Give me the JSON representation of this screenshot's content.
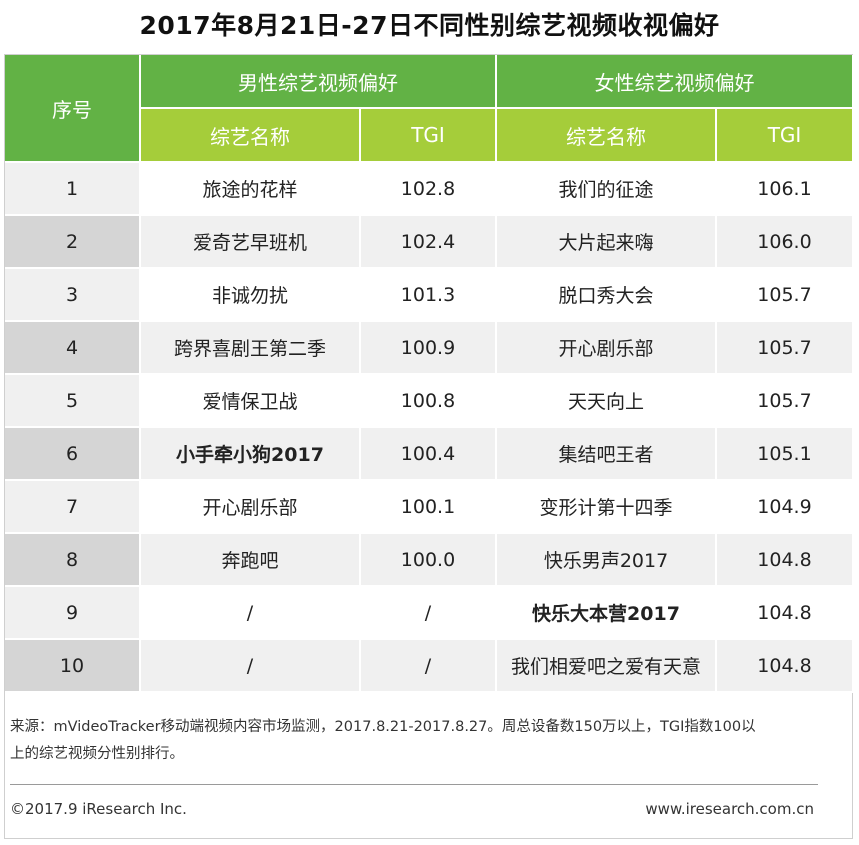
{
  "title": "2017年8月21日-27日不同性别综艺视频收视偏好",
  "table": {
    "col_seq": "序号",
    "group_male": "男性综艺视频偏好",
    "group_female": "女性综艺视频偏好",
    "sub_name_male": "综艺名称",
    "sub_tgi_male": "TGI",
    "sub_name_female": "综艺名称",
    "sub_tgi_female": "TGI",
    "rows": [
      {
        "seq": "1",
        "male_name": "旅途的花样",
        "male_tgi": "102.8",
        "female_name": "我们的征途",
        "female_tgi": "106.1"
      },
      {
        "seq": "2",
        "male_name": "爱奇艺早班机",
        "male_tgi": "102.4",
        "female_name": "大片起来嗨",
        "female_tgi": "106.0"
      },
      {
        "seq": "3",
        "male_name": "非诚勿扰",
        "male_tgi": "101.3",
        "female_name": "脱口秀大会",
        "female_tgi": "105.7"
      },
      {
        "seq": "4",
        "male_name": "跨界喜剧王第二季",
        "male_tgi": "100.9",
        "female_name": "开心剧乐部",
        "female_tgi": "105.7"
      },
      {
        "seq": "5",
        "male_name": "爱情保卫战",
        "male_tgi": "100.8",
        "female_name": "天天向上",
        "female_tgi": "105.7"
      },
      {
        "seq": "6",
        "male_name": "小手牵小狗2017",
        "male_tgi": "100.4",
        "female_name": "集结吧王者",
        "female_tgi": "105.1"
      },
      {
        "seq": "7",
        "male_name": "开心剧乐部",
        "male_tgi": "100.1",
        "female_name": "变形计第十四季",
        "female_tgi": "104.9"
      },
      {
        "seq": "8",
        "male_name": "奔跑吧",
        "male_tgi": "100.0",
        "female_name": "快乐男声2017",
        "female_tgi": "104.8"
      },
      {
        "seq": "9",
        "male_name": "/",
        "male_tgi": "/",
        "female_name": "快乐大本营2017",
        "female_tgi": "104.8"
      },
      {
        "seq": "10",
        "male_name": "/",
        "male_tgi": "/",
        "female_name": "我们相爱吧之爱有天意",
        "female_tgi": "104.8"
      }
    ]
  },
  "source_line1": "来源：mVideoTracker移动端视频内容市场监测，2017.8.21-2017.8.27。周总设备数150万以上，TGI指数100以",
  "source_line2": "上的综艺视频分性别排行。",
  "copyright": "©2017.9 iResearch Inc.",
  "website": "www.iresearch.com.cn",
  "colors": {
    "header_green": "#62b245",
    "subheader_lime": "#a5cd3a"
  }
}
